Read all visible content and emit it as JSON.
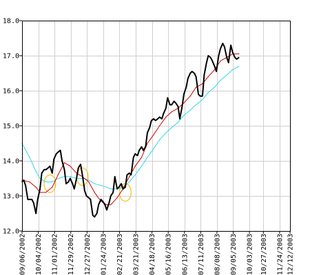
{
  "chart_data": {
    "type": "line",
    "title": "",
    "xlabel": "",
    "ylabel": "",
    "ylim": [
      12.0,
      18.0
    ],
    "y_ticks": [
      "12.0",
      "13.0",
      "14.0",
      "15.0",
      "16.0",
      "17.0",
      "18.0"
    ],
    "x_range": [
      "2002-09-06",
      "2003-12-12"
    ],
    "x_ticks": [
      "09/06/2002",
      "10/04/2002",
      "11/01/2002",
      "11/29/2002",
      "12/27/2002",
      "01/24/2003",
      "02/21/2003",
      "03/21/2003",
      "04/18/2003",
      "05/16/2003",
      "06/13/2003",
      "07/11/2003",
      "08/08/2003",
      "09/05/2003",
      "10/03/2003",
      "10/27/2003",
      "11/24/2003",
      "12/12/2003"
    ],
    "grid": true,
    "series": [
      {
        "role": "price",
        "color": "#000000",
        "points": [
          [
            "2002-09-06",
            13.4
          ],
          [
            "2002-09-09",
            13.45
          ],
          [
            "2002-09-12",
            13.3
          ],
          [
            "2002-09-16",
            12.9
          ],
          [
            "2002-09-19",
            12.9
          ],
          [
            "2002-09-23",
            12.9
          ],
          [
            "2002-09-26",
            12.8
          ],
          [
            "2002-09-30",
            12.5
          ],
          [
            "2002-10-03",
            12.9
          ],
          [
            "2002-10-07",
            13.2
          ],
          [
            "2002-10-10",
            13.65
          ],
          [
            "2002-10-14",
            13.75
          ],
          [
            "2002-10-17",
            13.75
          ],
          [
            "2002-10-21",
            13.8
          ],
          [
            "2002-10-24",
            13.85
          ],
          [
            "2002-10-28",
            13.65
          ],
          [
            "2002-10-31",
            14.05
          ],
          [
            "2002-11-04",
            14.2
          ],
          [
            "2002-11-07",
            14.25
          ],
          [
            "2002-11-11",
            14.3
          ],
          [
            "2002-11-14",
            14.0
          ],
          [
            "2002-11-18",
            13.75
          ],
          [
            "2002-11-21",
            13.35
          ],
          [
            "2002-11-25",
            13.4
          ],
          [
            "2002-11-28",
            13.5
          ],
          [
            "2002-12-02",
            13.35
          ],
          [
            "2002-12-05",
            13.2
          ],
          [
            "2002-12-09",
            13.5
          ],
          [
            "2002-12-12",
            13.8
          ],
          [
            "2002-12-16",
            13.9
          ],
          [
            "2002-12-19",
            13.6
          ],
          [
            "2002-12-23",
            13.15
          ],
          [
            "2002-12-26",
            13.0
          ],
          [
            "2002-12-30",
            12.95
          ],
          [
            "2003-01-02",
            12.9
          ],
          [
            "2003-01-06",
            12.45
          ],
          [
            "2003-01-09",
            12.4
          ],
          [
            "2003-01-13",
            12.5
          ],
          [
            "2003-01-16",
            12.75
          ],
          [
            "2003-01-20",
            12.9
          ],
          [
            "2003-01-23",
            12.85
          ],
          [
            "2003-01-27",
            12.75
          ],
          [
            "2003-01-30",
            12.6
          ],
          [
            "2003-02-03",
            12.8
          ],
          [
            "2003-02-06",
            13.0
          ],
          [
            "2003-02-10",
            13.1
          ],
          [
            "2003-02-13",
            13.55
          ],
          [
            "2003-02-17",
            13.2
          ],
          [
            "2003-02-20",
            13.25
          ],
          [
            "2003-02-24",
            13.35
          ],
          [
            "2003-02-27",
            13.2
          ],
          [
            "2003-03-03",
            13.25
          ],
          [
            "2003-03-06",
            13.6
          ],
          [
            "2003-03-10",
            13.65
          ],
          [
            "2003-03-13",
            13.6
          ],
          [
            "2003-03-17",
            14.1
          ],
          [
            "2003-03-20",
            14.2
          ],
          [
            "2003-03-24",
            14.15
          ],
          [
            "2003-03-27",
            14.3
          ],
          [
            "2003-03-31",
            14.4
          ],
          [
            "2003-04-03",
            14.3
          ],
          [
            "2003-04-07",
            14.4
          ],
          [
            "2003-04-10",
            14.8
          ],
          [
            "2003-04-14",
            14.95
          ],
          [
            "2003-04-17",
            15.15
          ],
          [
            "2003-04-21",
            15.2
          ],
          [
            "2003-04-24",
            15.15
          ],
          [
            "2003-04-28",
            15.2
          ],
          [
            "2003-05-01",
            15.25
          ],
          [
            "2003-05-05",
            15.2
          ],
          [
            "2003-05-08",
            15.35
          ],
          [
            "2003-05-12",
            15.5
          ],
          [
            "2003-05-15",
            15.8
          ],
          [
            "2003-05-19",
            15.6
          ],
          [
            "2003-05-22",
            15.6
          ],
          [
            "2003-05-26",
            15.7
          ],
          [
            "2003-05-29",
            15.65
          ],
          [
            "2003-06-02",
            15.55
          ],
          [
            "2003-06-05",
            15.2
          ],
          [
            "2003-06-09",
            15.55
          ],
          [
            "2003-06-12",
            15.9
          ],
          [
            "2003-06-16",
            16.1
          ],
          [
            "2003-06-19",
            16.35
          ],
          [
            "2003-06-23",
            16.5
          ],
          [
            "2003-06-26",
            16.55
          ],
          [
            "2003-06-30",
            16.5
          ],
          [
            "2003-07-03",
            16.4
          ],
          [
            "2003-07-07",
            15.9
          ],
          [
            "2003-07-10",
            15.85
          ],
          [
            "2003-07-14",
            15.85
          ],
          [
            "2003-07-17",
            16.45
          ],
          [
            "2003-07-21",
            16.8
          ],
          [
            "2003-07-24",
            17.0
          ],
          [
            "2003-07-28",
            16.95
          ],
          [
            "2003-07-31",
            16.85
          ],
          [
            "2003-08-04",
            16.7
          ],
          [
            "2003-08-07",
            16.55
          ],
          [
            "2003-08-11",
            17.0
          ],
          [
            "2003-08-14",
            17.2
          ],
          [
            "2003-08-18",
            17.35
          ],
          [
            "2003-08-21",
            17.25
          ],
          [
            "2003-08-25",
            16.95
          ],
          [
            "2003-08-28",
            16.8
          ],
          [
            "2003-09-01",
            17.3
          ],
          [
            "2003-09-04",
            17.1
          ],
          [
            "2003-09-08",
            16.95
          ],
          [
            "2003-09-11",
            16.9
          ],
          [
            "2003-09-15",
            16.95
          ]
        ]
      },
      {
        "role": "moving-average-short",
        "color": "#cc0000",
        "points": [
          [
            "2002-09-06",
            13.45
          ],
          [
            "2002-09-19",
            13.4
          ],
          [
            "2002-09-30",
            13.25
          ],
          [
            "2002-10-07",
            13.1
          ],
          [
            "2002-10-17",
            13.1
          ],
          [
            "2002-10-28",
            13.25
          ],
          [
            "2002-11-07",
            13.6
          ],
          [
            "2002-11-18",
            13.95
          ],
          [
            "2002-11-28",
            13.85
          ],
          [
            "2002-12-09",
            13.65
          ],
          [
            "2002-12-19",
            13.55
          ],
          [
            "2002-12-30",
            13.4
          ],
          [
            "2003-01-09",
            13.1
          ],
          [
            "2003-01-20",
            12.85
          ],
          [
            "2003-01-30",
            12.75
          ],
          [
            "2003-02-06",
            12.75
          ],
          [
            "2003-02-17",
            12.95
          ],
          [
            "2003-02-27",
            13.2
          ],
          [
            "2003-03-10",
            13.55
          ],
          [
            "2003-03-20",
            13.85
          ],
          [
            "2003-03-31",
            14.1
          ],
          [
            "2003-04-10",
            14.5
          ],
          [
            "2003-04-21",
            14.75
          ],
          [
            "2003-05-01",
            15.0
          ],
          [
            "2003-05-12",
            15.25
          ],
          [
            "2003-05-22",
            15.4
          ],
          [
            "2003-06-02",
            15.5
          ],
          [
            "2003-06-12",
            15.65
          ],
          [
            "2003-06-23",
            15.85
          ],
          [
            "2003-07-03",
            16.1
          ],
          [
            "2003-07-14",
            16.2
          ],
          [
            "2003-07-24",
            16.4
          ],
          [
            "2003-08-04",
            16.6
          ],
          [
            "2003-08-14",
            16.85
          ],
          [
            "2003-08-25",
            16.95
          ],
          [
            "2003-09-04",
            17.05
          ],
          [
            "2003-09-15",
            17.05
          ]
        ]
      },
      {
        "role": "moving-average-long",
        "color": "#33d6e6",
        "points": [
          [
            "2002-09-06",
            14.5
          ],
          [
            "2002-09-19",
            14.1
          ],
          [
            "2002-09-30",
            13.7
          ],
          [
            "2002-10-07",
            13.5
          ],
          [
            "2002-10-17",
            13.4
          ],
          [
            "2002-10-28",
            13.4
          ],
          [
            "2002-11-07",
            13.5
          ],
          [
            "2002-11-18",
            13.55
          ],
          [
            "2002-11-28",
            13.55
          ],
          [
            "2002-12-09",
            13.5
          ],
          [
            "2002-12-19",
            13.5
          ],
          [
            "2002-12-30",
            13.45
          ],
          [
            "2003-01-09",
            13.35
          ],
          [
            "2003-01-20",
            13.3
          ],
          [
            "2003-01-30",
            13.25
          ],
          [
            "2003-02-06",
            13.2
          ],
          [
            "2003-02-17",
            13.2
          ],
          [
            "2003-02-27",
            13.25
          ],
          [
            "2003-03-10",
            13.4
          ],
          [
            "2003-03-20",
            13.6
          ],
          [
            "2003-03-31",
            13.85
          ],
          [
            "2003-04-10",
            14.1
          ],
          [
            "2003-04-21",
            14.35
          ],
          [
            "2003-05-01",
            14.6
          ],
          [
            "2003-05-12",
            14.8
          ],
          [
            "2003-05-22",
            14.95
          ],
          [
            "2003-06-02",
            15.1
          ],
          [
            "2003-06-12",
            15.3
          ],
          [
            "2003-06-23",
            15.45
          ],
          [
            "2003-07-03",
            15.6
          ],
          [
            "2003-07-14",
            15.75
          ],
          [
            "2003-07-24",
            15.95
          ],
          [
            "2003-08-04",
            16.1
          ],
          [
            "2003-08-14",
            16.3
          ],
          [
            "2003-08-25",
            16.45
          ],
          [
            "2003-09-04",
            16.6
          ],
          [
            "2003-09-15",
            16.7
          ]
        ]
      }
    ],
    "annotations": [
      {
        "shape": "ellipse",
        "color": "#f0c020",
        "center": [
          "2002-10-24",
          13.35
        ],
        "rx_days": 10,
        "ry_value": 0.25
      },
      {
        "shape": "ellipse",
        "color": "#f0c020",
        "center": [
          "2002-12-19",
          13.55
        ],
        "rx_days": 10,
        "ry_value": 0.25
      },
      {
        "shape": "ellipse",
        "color": "#f0c020",
        "center": [
          "2003-03-03",
          13.1
        ],
        "rx_days": 10,
        "ry_value": 0.25
      }
    ]
  }
}
